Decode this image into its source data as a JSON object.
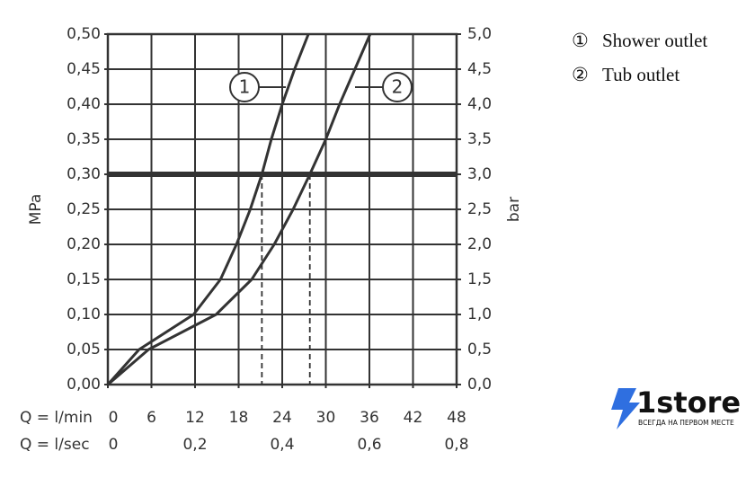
{
  "chart_data": {
    "type": "line",
    "ylabel": "MPa",
    "y2label": "bar",
    "xlabel": "Q = l/min",
    "x2label": "Q = l/sec",
    "xlim": [
      0,
      48
    ],
    "xticks": [
      0,
      6,
      12,
      18,
      24,
      30,
      36,
      42,
      48
    ],
    "x2lim": [
      0,
      0.8
    ],
    "x2ticks": [
      {
        "value": 0,
        "label": "0"
      },
      {
        "value": 0.2,
        "label": "0,2"
      },
      {
        "value": 0.4,
        "label": "0,4"
      },
      {
        "value": 0.6,
        "label": "0,6"
      },
      {
        "value": 0.8,
        "label": "0,8"
      }
    ],
    "ylim": [
      0,
      0.5
    ],
    "yticks": [
      {
        "value": 0,
        "label": "0,00"
      },
      {
        "value": 0.05,
        "label": "0,05"
      },
      {
        "value": 0.1,
        "label": "0,10"
      },
      {
        "value": 0.15,
        "label": "0,15"
      },
      {
        "value": 0.2,
        "label": "0,20"
      },
      {
        "value": 0.25,
        "label": "0,25"
      },
      {
        "value": 0.3,
        "label": "0,30"
      },
      {
        "value": 0.35,
        "label": "0,35"
      },
      {
        "value": 0.4,
        "label": "0,40"
      },
      {
        "value": 0.45,
        "label": "0,45"
      },
      {
        "value": 0.5,
        "label": "0,50"
      }
    ],
    "y2lim": [
      0,
      5
    ],
    "y2ticks": [
      {
        "value": 0,
        "label": "0,0"
      },
      {
        "value": 0.5,
        "label": "0,5"
      },
      {
        "value": 1,
        "label": "1,0"
      },
      {
        "value": 1.5,
        "label": "1,5"
      },
      {
        "value": 2,
        "label": "2,0"
      },
      {
        "value": 2.5,
        "label": "2,5"
      },
      {
        "value": 3,
        "label": "3,0"
      },
      {
        "value": 3.5,
        "label": "3,5"
      },
      {
        "value": 4,
        "label": "4,0"
      },
      {
        "value": 4.5,
        "label": "4,5"
      },
      {
        "value": 5,
        "label": "5,0"
      }
    ],
    "grid": true,
    "reference_y": 0.3,
    "reference_x": [
      21.2,
      27.8
    ],
    "series": [
      {
        "name": "Shower outlet",
        "symbol": "①",
        "label": "1",
        "color": "#333333",
        "x": [
          0,
          4.3,
          11.8,
          15.5,
          17.7,
          19.6,
          21.2,
          22.5,
          24,
          25.7,
          27.6
        ],
        "values": [
          0,
          0.05,
          0.1,
          0.15,
          0.2,
          0.25,
          0.3,
          0.35,
          0.4,
          0.45,
          0.5
        ]
      },
      {
        "name": "Tub outlet",
        "symbol": "②",
        "label": "2",
        "color": "#333333",
        "x": [
          0,
          5.6,
          14.9,
          19.8,
          22.9,
          25.5,
          27.8,
          30,
          31.9,
          34,
          36.1
        ],
        "values": [
          0,
          0.05,
          0.1,
          0.15,
          0.2,
          0.25,
          0.3,
          0.35,
          0.4,
          0.45,
          0.5
        ]
      }
    ]
  },
  "logo": {
    "name": "1store",
    "tagline": "ВСЕГДА НА ПЕРВОМ МЕСТЕ"
  }
}
